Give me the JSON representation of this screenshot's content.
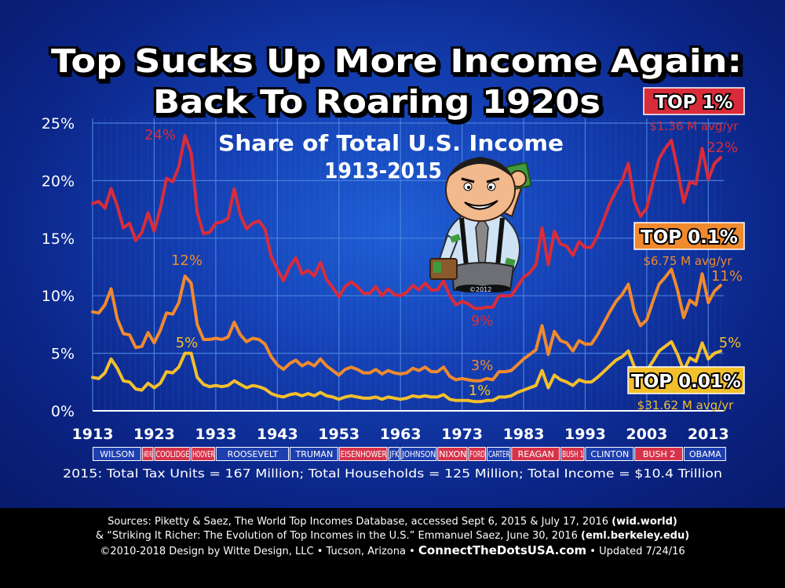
{
  "title": {
    "line1": "Top Sucks Up More Income Again:",
    "line2": "Back To Roaring 1920s"
  },
  "subtitle": {
    "line1": "Share of Total U.S. Income",
    "line2": "1913-2015"
  },
  "cartoon_copyright": "©2012",
  "colors": {
    "top1": "#d92c3a",
    "top01": "#f08a2e",
    "top001": "#f3bf2c",
    "grid": "#4f86e0",
    "axis_text": "#ffffff"
  },
  "legend": [
    {
      "label": "TOP 1%",
      "avg": "$1.36 M avg/yr",
      "color": "#d92c3a"
    },
    {
      "label": "TOP 0.1%",
      "avg": "$6.75 M avg/yr",
      "color": "#f08a2e"
    },
    {
      "label": "TOP 0.01%",
      "avg": "$31.62 M avg/yr",
      "color": "#f3bf2c"
    }
  ],
  "annotations": [
    {
      "text": "24%",
      "series": "TOP 1%"
    },
    {
      "text": "22%",
      "series": "TOP 1%"
    },
    {
      "text": "9%",
      "series": "TOP 1%"
    },
    {
      "text": "12%",
      "series": "TOP 0.1%"
    },
    {
      "text": "11%",
      "series": "TOP 0.1%"
    },
    {
      "text": "3%",
      "series": "TOP 0.1%"
    },
    {
      "text": "5%",
      "series": "TOP 0.01%"
    },
    {
      "text": "5%",
      "series": "TOP 0.01%"
    },
    {
      "text": "1%",
      "series": "TOP 0.01%"
    }
  ],
  "presidents": [
    {
      "name": "WILSON",
      "start": 1913,
      "end": 1921,
      "color": "#1e3fae"
    },
    {
      "name": "HARD ING",
      "start": 1921,
      "end": 1923,
      "color": "#d6334b"
    },
    {
      "name": "COOLIDGE",
      "start": 1923,
      "end": 1929,
      "color": "#d6334b"
    },
    {
      "name": "HOOVER",
      "start": 1929,
      "end": 1933,
      "color": "#d6334b"
    },
    {
      "name": "ROOSEVELT",
      "start": 1933,
      "end": 1945,
      "color": "#1e3fae"
    },
    {
      "name": "TRUMAN",
      "start": 1945,
      "end": 1953,
      "color": "#1e3fae"
    },
    {
      "name": "EISENHOWER",
      "start": 1953,
      "end": 1961,
      "color": "#d6334b"
    },
    {
      "name": "JFK",
      "start": 1961,
      "end": 1963,
      "color": "#1e3fae"
    },
    {
      "name": "JOHNSON",
      "start": 1963,
      "end": 1969,
      "color": "#1e3fae"
    },
    {
      "name": "NIXON",
      "start": 1969,
      "end": 1974,
      "color": "#d6334b"
    },
    {
      "name": "FORD",
      "start": 1974,
      "end": 1977,
      "color": "#d6334b"
    },
    {
      "name": "CARTER",
      "start": 1977,
      "end": 1981,
      "color": "#1e3fae"
    },
    {
      "name": "REAGAN",
      "start": 1981,
      "end": 1989,
      "color": "#d6334b"
    },
    {
      "name": "BUSH 1",
      "start": 1989,
      "end": 1993,
      "color": "#d6334b"
    },
    {
      "name": "CLINTON",
      "start": 1993,
      "end": 2001,
      "color": "#1e3fae"
    },
    {
      "name": "BUSH 2",
      "start": 2001,
      "end": 2009,
      "color": "#d6334b"
    },
    {
      "name": "OBAMA",
      "start": 2009,
      "end": 2016,
      "color": "#1e3fae"
    }
  ],
  "note": "2015: Total Tax Units = 167 Million; Total Households = 125 Million; Total Income = $10.4 Trillion",
  "footer": {
    "line1_text": "Sources: Piketty & Saez, The World Top Incomes Database, accessed Sept 6, 2015 & July 17, 2016 ",
    "line1_bold": "(wid.world)",
    "line2_text": "& “Striking It Richer: The Evolution of Top Incomes in the U.S.” Emmanuel Saez, June 30, 2016 ",
    "line2_bold": "(eml.berkeley.edu)",
    "line3_a": "©2010-2018 Design by Witte Design, LLC • Tucson, Arizona • ",
    "line3_site": "ConnectTheDotsUSA.com",
    "line3_b": " • Updated 7/24/16"
  },
  "chart_data": {
    "type": "line",
    "title": "Share of Total U.S. Income",
    "subtitle": "1913-2015",
    "xlim": [
      1913,
      2015
    ],
    "ylim": [
      0,
      25
    ],
    "x_ticks": [
      1913,
      1923,
      1933,
      1943,
      1953,
      1963,
      1973,
      1983,
      1993,
      2003,
      2013
    ],
    "y_ticks": [
      "0%",
      "5%",
      "10%",
      "15%",
      "20%",
      "25%"
    ],
    "grid": true,
    "x": [
      1913,
      1914,
      1915,
      1916,
      1917,
      1918,
      1919,
      1920,
      1921,
      1922,
      1923,
      1924,
      1925,
      1926,
      1927,
      1928,
      1929,
      1930,
      1931,
      1932,
      1933,
      1934,
      1935,
      1936,
      1937,
      1938,
      1939,
      1940,
      1941,
      1942,
      1943,
      1944,
      1945,
      1946,
      1947,
      1948,
      1949,
      1950,
      1951,
      1952,
      1953,
      1954,
      1955,
      1956,
      1957,
      1958,
      1959,
      1960,
      1961,
      1962,
      1963,
      1964,
      1965,
      1966,
      1967,
      1968,
      1969,
      1970,
      1971,
      1972,
      1973,
      1974,
      1975,
      1976,
      1977,
      1978,
      1979,
      1980,
      1981,
      1982,
      1983,
      1984,
      1985,
      1986,
      1987,
      1988,
      1989,
      1990,
      1991,
      1992,
      1993,
      1994,
      1995,
      1996,
      1997,
      1998,
      1999,
      2000,
      2001,
      2002,
      2003,
      2004,
      2005,
      2006,
      2007,
      2008,
      2009,
      2010,
      2011,
      2012,
      2013,
      2014,
      2015
    ],
    "series": [
      {
        "name": "TOP 1%",
        "color": "#d92c3a",
        "values": [
          18.0,
          18.2,
          17.6,
          19.3,
          17.8,
          15.9,
          16.3,
          14.8,
          15.5,
          17.2,
          15.6,
          17.6,
          20.2,
          19.9,
          21.2,
          23.9,
          22.4,
          17.2,
          15.4,
          15.5,
          16.3,
          16.4,
          16.7,
          19.3,
          17.0,
          15.8,
          16.3,
          16.5,
          15.8,
          13.4,
          12.3,
          11.3,
          12.5,
          13.3,
          11.9,
          12.2,
          11.7,
          12.9,
          11.4,
          10.7,
          9.9,
          10.8,
          11.2,
          10.8,
          10.2,
          10.2,
          10.8,
          10.0,
          10.6,
          10.1,
          10.0,
          10.3,
          10.9,
          10.5,
          11.1,
          10.5,
          10.5,
          11.3,
          10.0,
          9.2,
          9.5,
          9.3,
          8.9,
          8.9,
          9.0,
          9.0,
          10.0,
          10.0,
          10.0,
          10.8,
          11.6,
          12.0,
          12.7,
          15.9,
          12.7,
          15.6,
          14.5,
          14.3,
          13.5,
          14.7,
          14.2,
          14.2,
          15.2,
          16.6,
          18.0,
          19.1,
          20.0,
          21.5,
          18.2,
          16.9,
          17.6,
          19.8,
          21.9,
          22.8,
          23.5,
          21.0,
          18.1,
          19.9,
          19.7,
          22.8,
          20.1,
          21.5,
          22.0
        ]
      },
      {
        "name": "TOP 0.1%",
        "color": "#f08a2e",
        "values": [
          8.6,
          8.5,
          9.2,
          10.6,
          8.0,
          6.7,
          6.6,
          5.5,
          5.6,
          6.8,
          5.9,
          7.0,
          8.5,
          8.4,
          9.4,
          11.7,
          11.1,
          7.5,
          6.2,
          6.2,
          6.3,
          6.2,
          6.4,
          7.7,
          6.6,
          6.0,
          6.3,
          6.2,
          5.8,
          4.7,
          4.0,
          3.6,
          4.1,
          4.4,
          3.9,
          4.2,
          3.9,
          4.5,
          3.9,
          3.5,
          3.1,
          3.6,
          3.8,
          3.6,
          3.3,
          3.3,
          3.6,
          3.2,
          3.5,
          3.3,
          3.2,
          3.3,
          3.7,
          3.5,
          3.8,
          3.4,
          3.4,
          3.8,
          3.0,
          2.7,
          2.8,
          2.7,
          2.6,
          2.6,
          2.8,
          2.7,
          3.4,
          3.4,
          3.5,
          4.0,
          4.5,
          4.9,
          5.3,
          7.4,
          4.9,
          6.9,
          6.1,
          5.9,
          5.2,
          6.1,
          5.8,
          5.8,
          6.6,
          7.6,
          8.6,
          9.5,
          10.1,
          11.0,
          8.6,
          7.4,
          7.9,
          9.5,
          11.0,
          11.6,
          12.3,
          10.5,
          8.1,
          9.6,
          9.2,
          11.9,
          9.4,
          10.4,
          10.9
        ]
      },
      {
        "name": "TOP 0.01%",
        "color": "#f3bf2c",
        "values": [
          2.9,
          2.8,
          3.3,
          4.5,
          3.7,
          2.6,
          2.5,
          1.9,
          1.8,
          2.4,
          2.0,
          2.4,
          3.4,
          3.3,
          3.8,
          5.0,
          5.0,
          2.9,
          2.3,
          2.1,
          2.2,
          2.1,
          2.2,
          2.6,
          2.3,
          2.0,
          2.2,
          2.1,
          1.9,
          1.5,
          1.3,
          1.2,
          1.4,
          1.5,
          1.3,
          1.5,
          1.3,
          1.6,
          1.3,
          1.2,
          1.0,
          1.2,
          1.3,
          1.2,
          1.1,
          1.1,
          1.2,
          1.0,
          1.2,
          1.1,
          1.0,
          1.1,
          1.3,
          1.2,
          1.3,
          1.2,
          1.2,
          1.4,
          1.0,
          0.9,
          0.9,
          0.9,
          0.8,
          0.8,
          0.9,
          0.9,
          1.2,
          1.2,
          1.3,
          1.6,
          1.8,
          2.0,
          2.2,
          3.5,
          2.0,
          3.1,
          2.7,
          2.5,
          2.2,
          2.7,
          2.5,
          2.5,
          2.9,
          3.4,
          3.9,
          4.4,
          4.7,
          5.2,
          3.8,
          3.2,
          3.5,
          4.3,
          5.2,
          5.6,
          6.0,
          4.9,
          3.5,
          4.6,
          4.3,
          5.9,
          4.5,
          5.0,
          5.2
        ]
      }
    ]
  }
}
